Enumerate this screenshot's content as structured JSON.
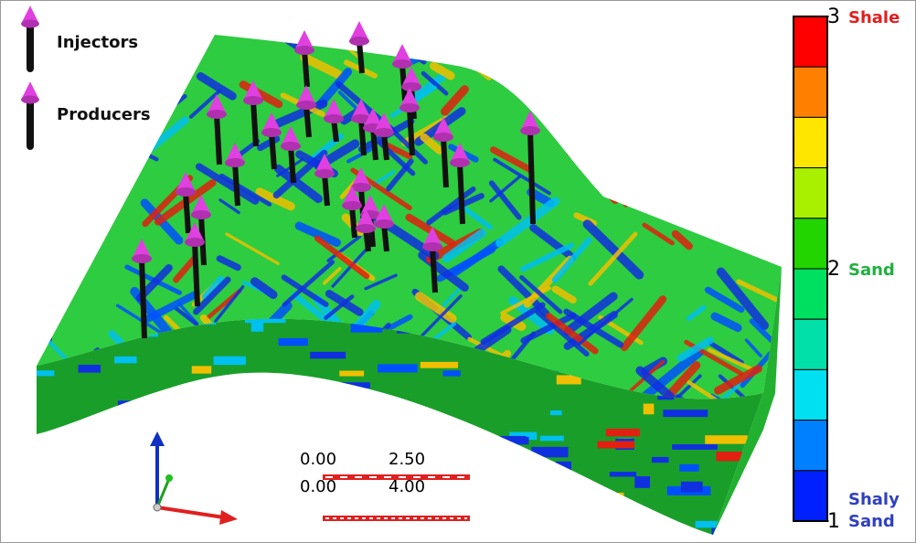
{
  "legend": {
    "items": [
      {
        "label": "Injectors"
      },
      {
        "label": "Producers"
      }
    ]
  },
  "colorbar": {
    "min": 1,
    "max": 3,
    "ticks": [
      1,
      2,
      3
    ],
    "colors": [
      "#ff0000",
      "#ff7f00",
      "#ffe600",
      "#a8f000",
      "#22d400",
      "#00e060",
      "#00e0a8",
      "#00e0f0",
      "#0080ff",
      "#0020ff"
    ],
    "classes": [
      {
        "value": 3,
        "label": "Shale",
        "color": "#e02020"
      },
      {
        "value": 2,
        "label": "Sand",
        "color": "#20b040"
      },
      {
        "value": 1,
        "label": "Shaly Sand",
        "color": "#3040c0"
      }
    ]
  },
  "scale_bars": [
    {
      "start": "0.00",
      "end": "2.50"
    },
    {
      "start": "0.00",
      "end": "4.00"
    }
  ]
}
